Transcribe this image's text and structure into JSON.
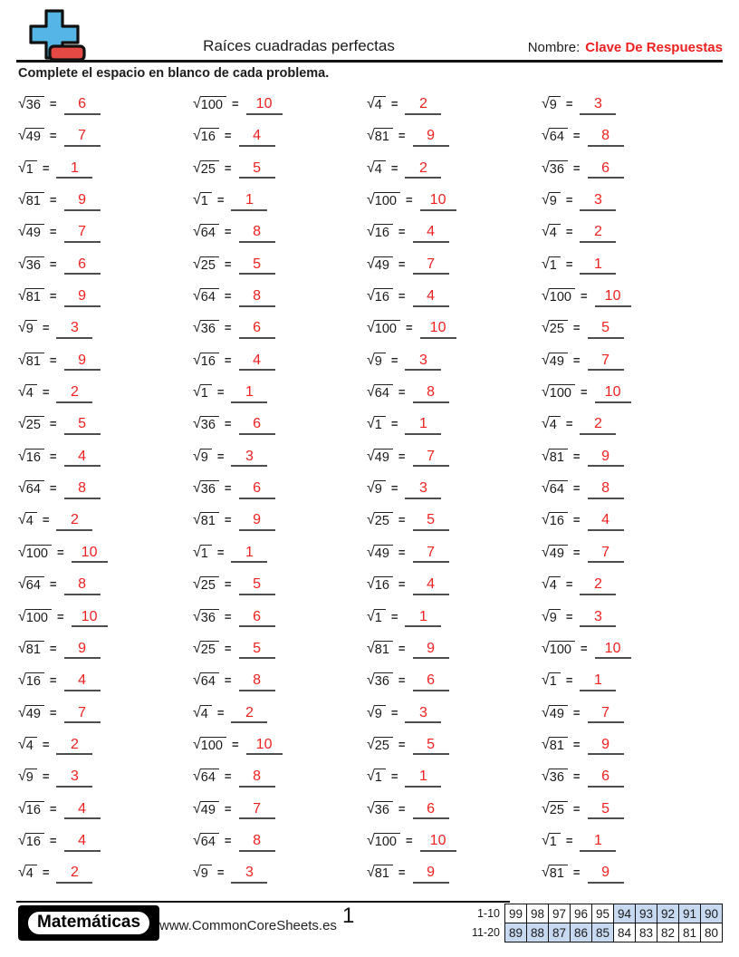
{
  "header": {
    "title": "Raíces cuadradas perfectas",
    "name_label": "Nombre:",
    "name_value": "Clave De Respuestas",
    "logo": {
      "icon": "plus-minus-logo",
      "plus_color": "#55b5e5",
      "minus_color": "#e54944",
      "outline_color": "#111111"
    }
  },
  "instruction": "Complete el espacio en blanco de cada problema.",
  "problems": {
    "sqrt_symbol": "√",
    "equals": "=",
    "answer_color": "#ef2020",
    "columns": [
      [
        {
          "n": "36",
          "a": "6"
        },
        {
          "n": "49",
          "a": "7"
        },
        {
          "n": "1",
          "a": "1"
        },
        {
          "n": "81",
          "a": "9"
        },
        {
          "n": "49",
          "a": "7"
        },
        {
          "n": "36",
          "a": "6"
        },
        {
          "n": "81",
          "a": "9"
        },
        {
          "n": "9",
          "a": "3"
        },
        {
          "n": "81",
          "a": "9"
        },
        {
          "n": "4",
          "a": "2"
        },
        {
          "n": "25",
          "a": "5"
        },
        {
          "n": "16",
          "a": "4"
        },
        {
          "n": "64",
          "a": "8"
        },
        {
          "n": "4",
          "a": "2"
        },
        {
          "n": "100",
          "a": "10"
        },
        {
          "n": "64",
          "a": "8"
        },
        {
          "n": "100",
          "a": "10"
        },
        {
          "n": "81",
          "a": "9"
        },
        {
          "n": "16",
          "a": "4"
        },
        {
          "n": "49",
          "a": "7"
        },
        {
          "n": "4",
          "a": "2"
        },
        {
          "n": "9",
          "a": "3"
        },
        {
          "n": "16",
          "a": "4"
        },
        {
          "n": "16",
          "a": "4"
        },
        {
          "n": "4",
          "a": "2"
        }
      ],
      [
        {
          "n": "100",
          "a": "10"
        },
        {
          "n": "16",
          "a": "4"
        },
        {
          "n": "25",
          "a": "5"
        },
        {
          "n": "1",
          "a": "1"
        },
        {
          "n": "64",
          "a": "8"
        },
        {
          "n": "25",
          "a": "5"
        },
        {
          "n": "64",
          "a": "8"
        },
        {
          "n": "36",
          "a": "6"
        },
        {
          "n": "16",
          "a": "4"
        },
        {
          "n": "1",
          "a": "1"
        },
        {
          "n": "36",
          "a": "6"
        },
        {
          "n": "9",
          "a": "3"
        },
        {
          "n": "36",
          "a": "6"
        },
        {
          "n": "81",
          "a": "9"
        },
        {
          "n": "1",
          "a": "1"
        },
        {
          "n": "25",
          "a": "5"
        },
        {
          "n": "36",
          "a": "6"
        },
        {
          "n": "25",
          "a": "5"
        },
        {
          "n": "64",
          "a": "8"
        },
        {
          "n": "4",
          "a": "2"
        },
        {
          "n": "100",
          "a": "10"
        },
        {
          "n": "64",
          "a": "8"
        },
        {
          "n": "49",
          "a": "7"
        },
        {
          "n": "64",
          "a": "8"
        },
        {
          "n": "9",
          "a": "3"
        }
      ],
      [
        {
          "n": "4",
          "a": "2"
        },
        {
          "n": "81",
          "a": "9"
        },
        {
          "n": "4",
          "a": "2"
        },
        {
          "n": "100",
          "a": "10"
        },
        {
          "n": "16",
          "a": "4"
        },
        {
          "n": "49",
          "a": "7"
        },
        {
          "n": "16",
          "a": "4"
        },
        {
          "n": "100",
          "a": "10"
        },
        {
          "n": "9",
          "a": "3"
        },
        {
          "n": "64",
          "a": "8"
        },
        {
          "n": "1",
          "a": "1"
        },
        {
          "n": "49",
          "a": "7"
        },
        {
          "n": "9",
          "a": "3"
        },
        {
          "n": "25",
          "a": "5"
        },
        {
          "n": "49",
          "a": "7"
        },
        {
          "n": "16",
          "a": "4"
        },
        {
          "n": "1",
          "a": "1"
        },
        {
          "n": "81",
          "a": "9"
        },
        {
          "n": "36",
          "a": "6"
        },
        {
          "n": "9",
          "a": "3"
        },
        {
          "n": "25",
          "a": "5"
        },
        {
          "n": "1",
          "a": "1"
        },
        {
          "n": "36",
          "a": "6"
        },
        {
          "n": "100",
          "a": "10"
        },
        {
          "n": "81",
          "a": "9"
        }
      ],
      [
        {
          "n": "9",
          "a": "3"
        },
        {
          "n": "64",
          "a": "8"
        },
        {
          "n": "36",
          "a": "6"
        },
        {
          "n": "9",
          "a": "3"
        },
        {
          "n": "4",
          "a": "2"
        },
        {
          "n": "1",
          "a": "1"
        },
        {
          "n": "100",
          "a": "10"
        },
        {
          "n": "25",
          "a": "5"
        },
        {
          "n": "49",
          "a": "7"
        },
        {
          "n": "100",
          "a": "10"
        },
        {
          "n": "4",
          "a": "2"
        },
        {
          "n": "81",
          "a": "9"
        },
        {
          "n": "64",
          "a": "8"
        },
        {
          "n": "16",
          "a": "4"
        },
        {
          "n": "49",
          "a": "7"
        },
        {
          "n": "4",
          "a": "2"
        },
        {
          "n": "9",
          "a": "3"
        },
        {
          "n": "100",
          "a": "10"
        },
        {
          "n": "1",
          "a": "1"
        },
        {
          "n": "49",
          "a": "7"
        },
        {
          "n": "81",
          "a": "9"
        },
        {
          "n": "36",
          "a": "6"
        },
        {
          "n": "25",
          "a": "5"
        },
        {
          "n": "1",
          "a": "1"
        },
        {
          "n": "81",
          "a": "9"
        }
      ]
    ]
  },
  "footer": {
    "brand": "Matemáticas",
    "url": "www.CommonCoreSheets.es",
    "page": "1",
    "score_table": {
      "shade_color": "#c6d9f1",
      "rows": [
        {
          "label": "1-10",
          "values": [
            "99",
            "98",
            "97",
            "96",
            "95",
            "94",
            "93",
            "92",
            "91",
            "90"
          ],
          "shaded": [
            false,
            false,
            false,
            false,
            false,
            true,
            true,
            true,
            true,
            true
          ]
        },
        {
          "label": "11-20",
          "values": [
            "89",
            "88",
            "87",
            "86",
            "85",
            "84",
            "83",
            "82",
            "81",
            "80"
          ],
          "shaded": [
            true,
            true,
            true,
            true,
            true,
            false,
            false,
            false,
            false,
            false
          ]
        }
      ]
    }
  }
}
